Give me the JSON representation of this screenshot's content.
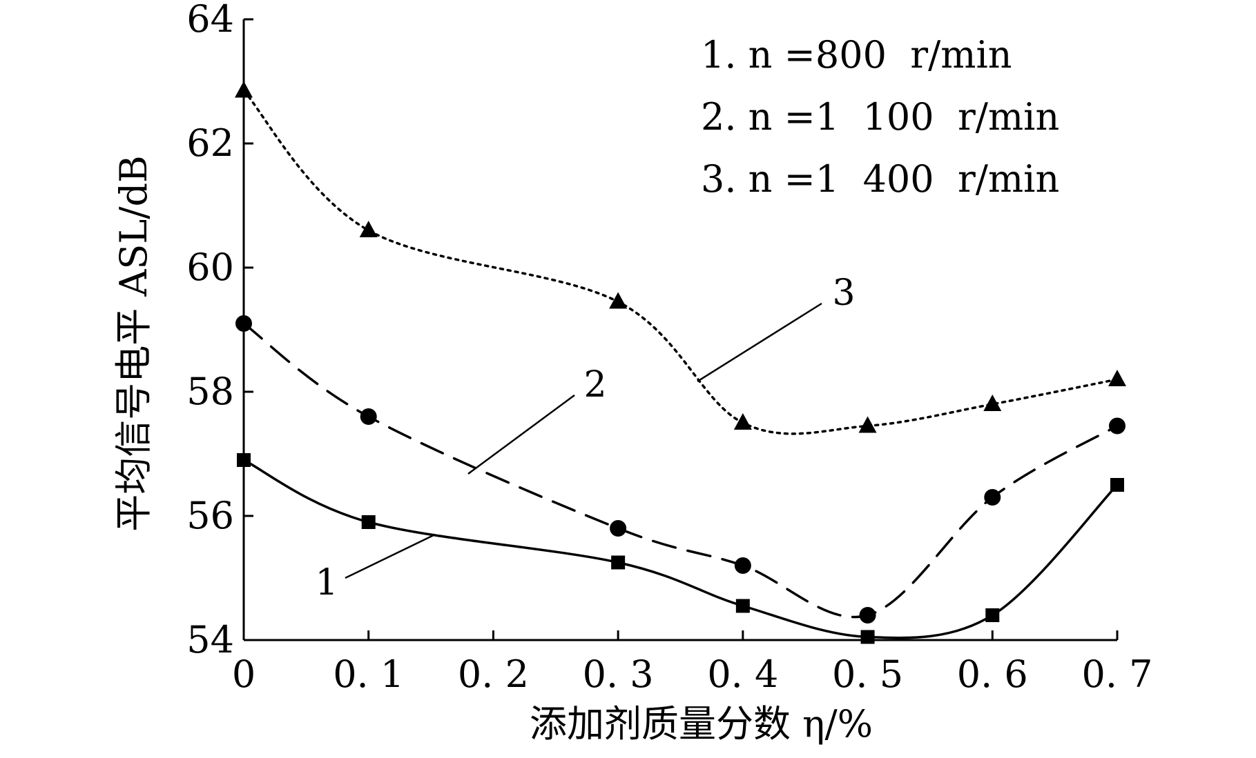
{
  "chart_data": {
    "type": "line",
    "title": "",
    "xlabel": "添加剂质量分数 η/%",
    "ylabel": "平均信号电平 ASL/dB",
    "xlim": [
      0,
      0.7
    ],
    "ylim": [
      54,
      64
    ],
    "x_ticks": [
      0,
      0.1,
      0.2,
      0.3,
      0.4,
      0.5,
      0.6,
      0.7
    ],
    "x_tick_labels": [
      "0",
      "0. 1",
      "0. 2",
      "0. 3",
      "0. 4",
      "0. 5",
      "0. 6",
      "0. 7"
    ],
    "y_ticks": [
      54,
      56,
      58,
      60,
      62,
      64
    ],
    "y_tick_labels": [
      "54",
      "56",
      "58",
      "60",
      "62",
      "64"
    ],
    "grid": false,
    "legend_position": "top-right",
    "legend": [
      "1. n =800  r/min",
      "2. n =1  100  r/min",
      "3. n =1  400  r/min"
    ],
    "series": [
      {
        "label": "1",
        "marker": "square",
        "line_style": "solid",
        "x": [
          0,
          0.1,
          0.3,
          0.4,
          0.5,
          0.6,
          0.7
        ],
        "y": [
          56.9,
          55.9,
          55.25,
          54.55,
          54.05,
          54.4,
          56.5
        ]
      },
      {
        "label": "2",
        "marker": "circle",
        "line_style": "dashed",
        "x": [
          0,
          0.1,
          0.3,
          0.4,
          0.5,
          0.6,
          0.7
        ],
        "y": [
          59.1,
          57.6,
          55.8,
          55.2,
          54.4,
          56.3,
          57.45
        ]
      },
      {
        "label": "3",
        "marker": "triangle",
        "line_style": "dotted",
        "x": [
          0,
          0.1,
          0.3,
          0.4,
          0.5,
          0.6,
          0.7
        ],
        "y": [
          62.85,
          60.6,
          59.45,
          57.5,
          57.45,
          57.8,
          58.2
        ]
      }
    ]
  }
}
